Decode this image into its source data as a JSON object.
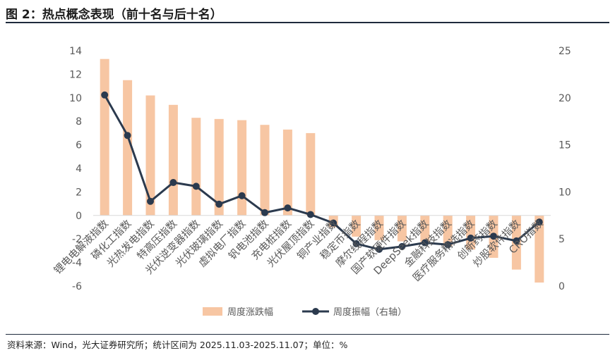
{
  "figure": {
    "title": "图 2：热点概念表现（前十名与后十名）",
    "source": "资料来源：Wind，光大证券研究所；统计区间为 2025.11.03-2025.11.07；单位：%"
  },
  "colors": {
    "bar": "#f7c6a3",
    "line": "#2b3a4e",
    "axis_text": "#595959",
    "rule": "#1e2b3c"
  },
  "chart_data": {
    "type": "bar+line",
    "categories": [
      "锂电电解液指数",
      "磷化工指数",
      "光热发电指数",
      "特高压指数",
      "光伏逆变器指数",
      "光伏玻璃指数",
      "虚拟电厂指数",
      "钒电池指数",
      "充电桩指数",
      "光伏屋顶指数",
      "铜产业指数",
      "稳定币指数",
      "摩尔线程指数",
      "国产软硬件指数",
      "DeepSeek指数",
      "金融科技指数",
      "医疗服务精选指数",
      "创新药指数",
      "炒股软件指数",
      "CRO指数"
    ],
    "series": [
      {
        "name": "周度涨跌幅",
        "type": "bar",
        "axis": "left",
        "values": [
          13.3,
          11.5,
          10.2,
          9.4,
          8.3,
          8.2,
          8.1,
          7.7,
          7.3,
          7.0,
          -1.0,
          -1.8,
          -2.1,
          -2.2,
          -2.4,
          -2.6,
          -2.9,
          -3.6,
          -4.6,
          -5.7
        ]
      },
      {
        "name": "周度振幅（右轴）",
        "type": "line",
        "axis": "right",
        "values": [
          20.3,
          16.0,
          9.0,
          11.0,
          10.6,
          8.7,
          9.6,
          7.8,
          8.3,
          7.6,
          6.7,
          4.5,
          3.9,
          4.2,
          4.6,
          4.4,
          5.1,
          5.3,
          4.8,
          6.8
        ]
      }
    ],
    "left_axis": {
      "ylim": [
        -6,
        14
      ],
      "ticks": [
        "14",
        "12",
        "10",
        "8",
        "6",
        "4",
        "2",
        "0",
        "-2",
        "-4",
        "-6"
      ]
    },
    "right_axis": {
      "ylim": [
        0,
        25
      ],
      "ticks": [
        "25",
        "20",
        "15",
        "10",
        "5",
        "0"
      ]
    },
    "legend": {
      "position": "bottom",
      "items": [
        "周度涨跌幅",
        "周度振幅（右轴）"
      ]
    }
  }
}
